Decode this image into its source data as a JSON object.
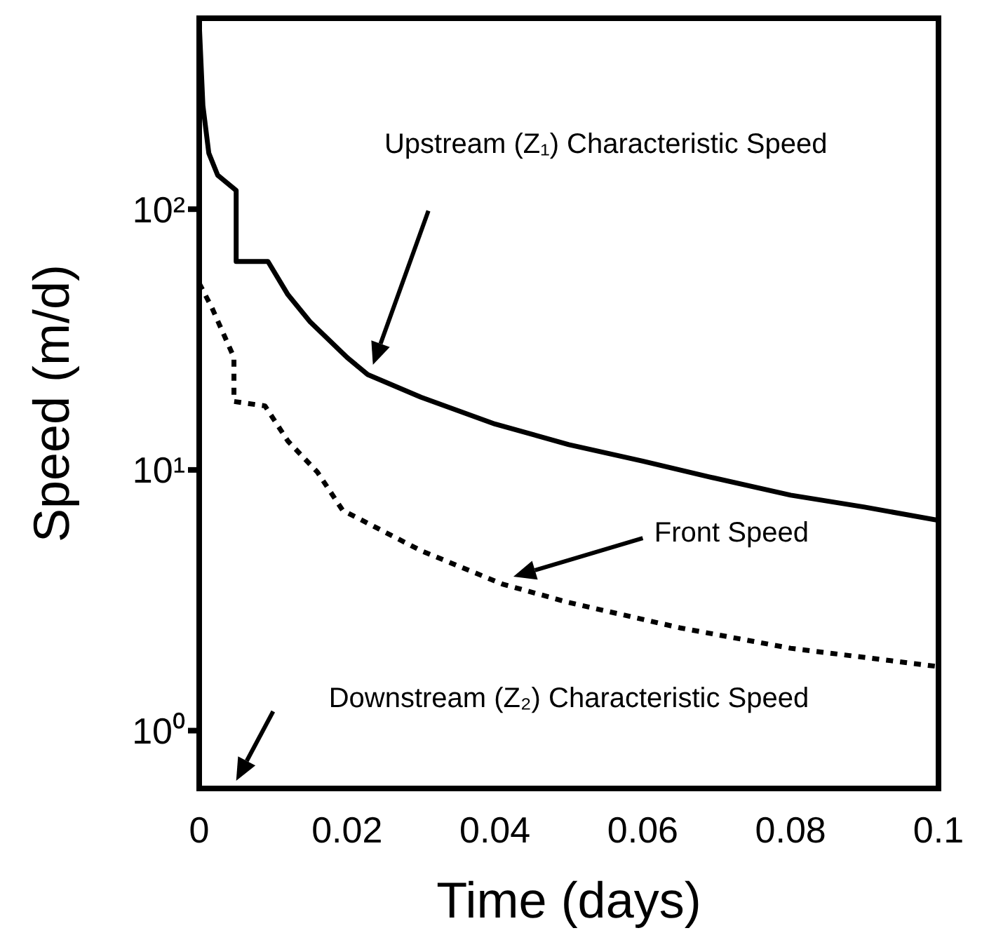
{
  "chart_data": {
    "type": "line",
    "xlabel": "Time (days)",
    "ylabel": "Speed (m/d)",
    "log": "y",
    "xlim": [
      0,
      0.1
    ],
    "xticks": [
      0,
      0.02,
      0.04,
      0.06,
      0.08,
      0.1
    ],
    "ylim": [
      0.6,
      540
    ],
    "yticks": [
      {
        "value": 1,
        "label": "10⁰"
      },
      {
        "value": 10,
        "label": "10¹"
      },
      {
        "value": 100,
        "label": "10²"
      }
    ],
    "marker": "none",
    "series": [
      {
        "color": "#000000",
        "line_style": "solid",
        "x": [
          0,
          0.0005,
          0.0013,
          0.0025,
          0.005,
          0.005,
          0.0093,
          0.012,
          0.015,
          0.02,
          0.0228,
          0.03,
          0.04,
          0.05,
          0.06,
          0.069,
          0.08,
          0.09,
          0.1
        ],
        "values": [
          520,
          250,
          164,
          135,
          118,
          63,
          63,
          47,
          37,
          27,
          23.2,
          19,
          15,
          12.5,
          10.8,
          9.4,
          8.0,
          7.2,
          6.4
        ]
      },
      {
        "color": "#000000",
        "line_style": "dotted",
        "x": [
          0,
          0.0017,
          0.0047,
          0.0047,
          0.0089,
          0.012,
          0.016,
          0.0194,
          0.03,
          0.041,
          0.05,
          0.065,
          0.08,
          0.1
        ],
        "values": [
          52,
          42,
          27,
          18.3,
          17.6,
          12.9,
          9.8,
          7.0,
          4.9,
          3.65,
          3.1,
          2.48,
          2.07,
          1.76
        ]
      }
    ],
    "annotations": [
      "Upstream (Z₁) Characteristic Speed",
      "Front Speed",
      "Downstream (Z₂) Characteristic Speed"
    ]
  }
}
